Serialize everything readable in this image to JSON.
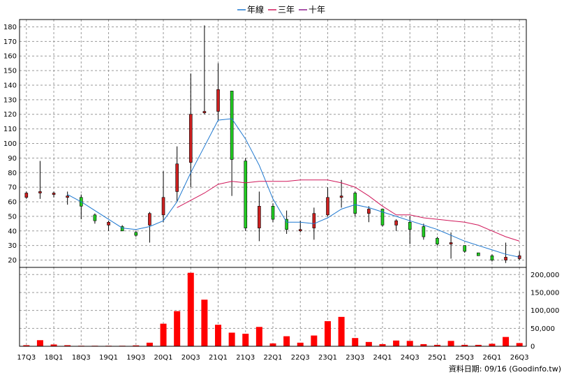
{
  "legend": [
    {
      "label": "年線",
      "color": "#1e78d0"
    },
    {
      "label": "三年",
      "color": "#d0185a"
    },
    {
      "label": "十年",
      "color": "#8e1c8e"
    }
  ],
  "footer": "資料日期: 09/16  (Goodinfo.tw)",
  "colors": {
    "up": "#cc2020",
    "down": "#22cc22",
    "volume": "#ff0000",
    "wick": "#000000"
  },
  "chart_data": [
    {
      "type": "candlestick",
      "categories": [
        "17Q3",
        "17Q4",
        "18Q1",
        "18Q2",
        "18Q3",
        "18Q4",
        "19Q1",
        "19Q2",
        "19Q3",
        "19Q4",
        "20Q1",
        "20Q2",
        "20Q3",
        "20Q4",
        "21Q1",
        "21Q2",
        "21Q3",
        "21Q4",
        "22Q1",
        "22Q2",
        "22Q3",
        "22Q4",
        "23Q1",
        "23Q2",
        "23Q3",
        "23Q4",
        "24Q1",
        "24Q2",
        "24Q3",
        "24Q4",
        "25Q1",
        "25Q2",
        "25Q3",
        "25Q4",
        "26Q1",
        "26Q2",
        "26Q3"
      ],
      "x_tick_labels": [
        "17Q3",
        "18Q1",
        "18Q3",
        "19Q1",
        "19Q3",
        "20Q1",
        "20Q3",
        "21Q1",
        "21Q3",
        "22Q1",
        "22Q3",
        "23Q1",
        "23Q3",
        "24Q1",
        "24Q3",
        "25Q1",
        "25Q3",
        "26Q1",
        "26Q3"
      ],
      "ylim": [
        15,
        185
      ],
      "y_ticks": [
        20,
        30,
        40,
        50,
        60,
        70,
        80,
        90,
        100,
        110,
        120,
        130,
        140,
        150,
        160,
        170,
        180
      ],
      "ohlc": [
        [
          63,
          67,
          62,
          66
        ],
        [
          66,
          88,
          62,
          67
        ],
        [
          65,
          67,
          63,
          66
        ],
        [
          63,
          67,
          58,
          64
        ],
        [
          63,
          65,
          48,
          57
        ],
        [
          51,
          52,
          45,
          47
        ],
        [
          44,
          47,
          40,
          46
        ],
        [
          43,
          44,
          40,
          40
        ],
        [
          39,
          40,
          36,
          37
        ],
        [
          44,
          53,
          32,
          52
        ],
        [
          51,
          81,
          46,
          63
        ],
        [
          67,
          98,
          60,
          86
        ],
        [
          87,
          148,
          70,
          120
        ],
        [
          121,
          181,
          120,
          122
        ],
        [
          122,
          155,
          116,
          137
        ],
        [
          136,
          136,
          64,
          89
        ],
        [
          88,
          90,
          40,
          42
        ],
        [
          42,
          67,
          33,
          57
        ],
        [
          57,
          59,
          46,
          48
        ],
        [
          48,
          54,
          38,
          41
        ],
        [
          41,
          47,
          39,
          41
        ],
        [
          42,
          56,
          34,
          52
        ],
        [
          51,
          70,
          50,
          63
        ],
        [
          63,
          75,
          56,
          64
        ],
        [
          66,
          67,
          50,
          52
        ],
        [
          52,
          57,
          46,
          55
        ],
        [
          55,
          55,
          43,
          44
        ],
        [
          44,
          48,
          40,
          47
        ],
        [
          46,
          50,
          31,
          41
        ],
        [
          43,
          45,
          34,
          36
        ],
        [
          35,
          36,
          30,
          31
        ],
        [
          31,
          39,
          21,
          32
        ],
        [
          30,
          30,
          25,
          26
        ],
        [
          25,
          25,
          23,
          23
        ],
        [
          23,
          24,
          19,
          20
        ],
        [
          20,
          32,
          18,
          22
        ],
        [
          21,
          26,
          20,
          23
        ]
      ],
      "series": [
        {
          "name": "年線",
          "color": "#1e78d0",
          "values": [
            null,
            null,
            null,
            65,
            60,
            54,
            48,
            42,
            41,
            43,
            47,
            60,
            80,
            98,
            116,
            117,
            103,
            85,
            62,
            46,
            46,
            45,
            49,
            55,
            58,
            56,
            53,
            50,
            47,
            44,
            41,
            37,
            33,
            30,
            27,
            24,
            22
          ]
        },
        {
          "name": "三年",
          "color": "#d0185a",
          "values": [
            null,
            null,
            null,
            null,
            null,
            null,
            null,
            null,
            null,
            null,
            null,
            56,
            61,
            66,
            72,
            74,
            73,
            74,
            74,
            74,
            75,
            75,
            75,
            73,
            70,
            64,
            57,
            51,
            51,
            49,
            48,
            47,
            46,
            44,
            40,
            36,
            33
          ]
        }
      ],
      "volume": {
        "ylim": [
          0,
          220000
        ],
        "y_ticks": [
          0,
          50000,
          100000,
          150000,
          200000
        ],
        "y_tick_labels": [
          "0",
          "50,000",
          "100,000",
          "150,000",
          "200,000"
        ],
        "values": [
          3000,
          17000,
          5000,
          3000,
          1500,
          1500,
          1500,
          1500,
          2500,
          10000,
          63000,
          98000,
          205000,
          130000,
          60000,
          38000,
          35000,
          54000,
          8000,
          28000,
          10000,
          30000,
          70000,
          82000,
          23000,
          12000,
          6000,
          16000,
          15000,
          6000,
          4000,
          15000,
          4000,
          4000,
          7000,
          26000,
          9000
        ]
      }
    }
  ]
}
